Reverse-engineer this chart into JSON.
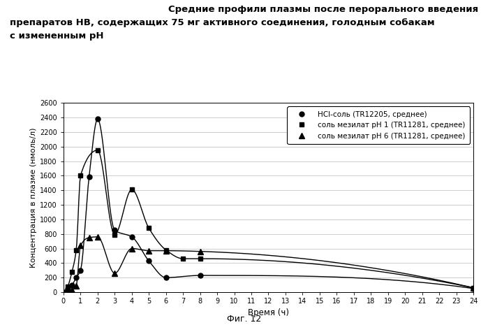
{
  "title_line1": "Средние профили плазмы после перорального введения",
  "title_line2": "препаратов НВ, содержащих 75 мг активного соединения, голодным собакам",
  "title_line3": "с измененным pH",
  "xlabel": "Время (ч)",
  "ylabel": "Концентрация в плазме (нмоль/л)",
  "caption": "Фиг. 12",
  "ylim": [
    0,
    2600
  ],
  "xlim": [
    0,
    24
  ],
  "yticks": [
    0,
    200,
    400,
    600,
    800,
    1000,
    1200,
    1400,
    1600,
    1800,
    2000,
    2200,
    2400,
    2600
  ],
  "xticks": [
    0,
    1,
    2,
    3,
    4,
    5,
    6,
    7,
    8,
    9,
    10,
    11,
    12,
    13,
    14,
    15,
    16,
    17,
    18,
    19,
    20,
    21,
    22,
    23,
    24
  ],
  "series": [
    {
      "label": "HCl-соль (TR12205, среднее)",
      "marker": "o",
      "x": [
        0,
        0.25,
        0.5,
        0.75,
        1.0,
        1.5,
        2.0,
        3.0,
        4.0,
        5.0,
        6.0,
        8.0,
        24.0
      ],
      "y": [
        0,
        50,
        100,
        200,
        300,
        1580,
        2380,
        850,
        760,
        430,
        200,
        230,
        50
      ]
    },
    {
      "label": "соль мезилат pH 1 (TR11281, среднее)",
      "marker": "s",
      "x": [
        0,
        0.25,
        0.5,
        0.75,
        1.0,
        2.0,
        3.0,
        4.0,
        5.0,
        6.0,
        7.0,
        8.0,
        24.0
      ],
      "y": [
        0,
        80,
        280,
        580,
        1600,
        1950,
        790,
        1410,
        880,
        580,
        460,
        460,
        60
      ]
    },
    {
      "label": "соль мезилат pH 6 (TR11281, среднее)",
      "marker": "^",
      "x": [
        0,
        0.25,
        0.5,
        0.75,
        1.0,
        1.5,
        2.0,
        3.0,
        4.0,
        5.0,
        6.0,
        8.0,
        24.0
      ],
      "y": [
        0,
        10,
        30,
        90,
        640,
        750,
        760,
        260,
        600,
        570,
        570,
        560,
        60
      ]
    }
  ],
  "background_color": "#ffffff",
  "grid_color": "#bbbbbb",
  "line_color": "#000000"
}
